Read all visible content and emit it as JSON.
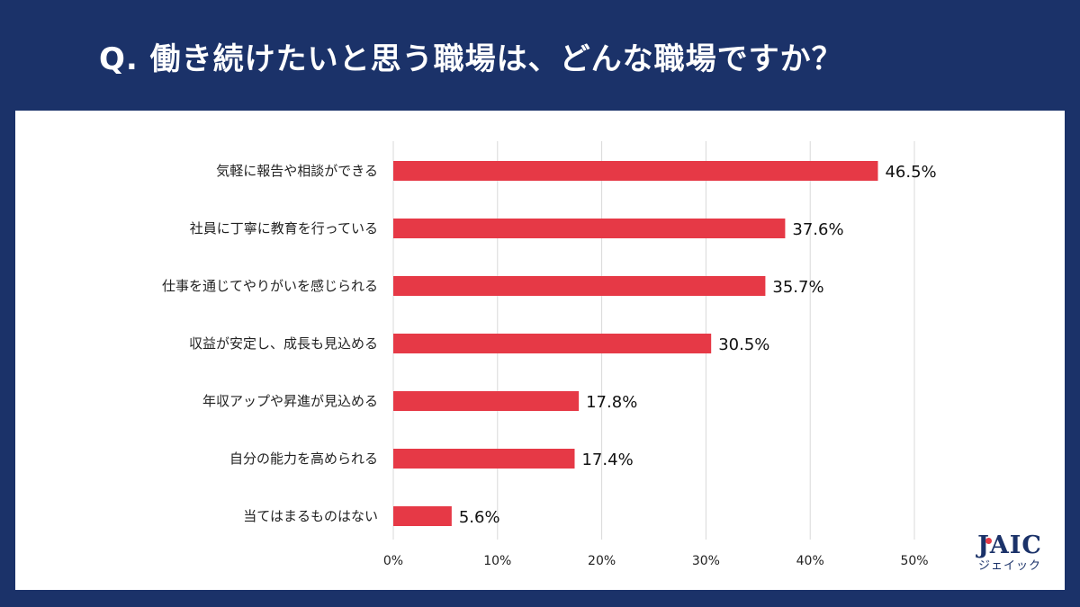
{
  "title": "Q. 働き続けたいと思う職場は、どんな職場ですか？",
  "chart_data": {
    "type": "bar",
    "orientation": "horizontal",
    "categories": [
      "気軽に報告や相談ができる",
      "社員に丁寧に教育を行っている",
      "仕事を通じてやりがいを感じられる",
      "収益が安定し、成長も見込める",
      "年収アップや昇進が見込める",
      "自分の能力を高められる",
      "当てはまるものはない"
    ],
    "values": [
      46.5,
      37.6,
      35.7,
      30.5,
      17.8,
      17.4,
      5.6
    ],
    "value_labels": [
      "46.5%",
      "37.6%",
      "35.7%",
      "30.5%",
      "17.8%",
      "17.4%",
      "5.6%"
    ],
    "xlim": [
      0,
      50
    ],
    "xticks": [
      0,
      10,
      20,
      30,
      40,
      50
    ],
    "xtick_labels": [
      "0%",
      "10%",
      "20%",
      "30%",
      "40%",
      "50%"
    ],
    "grid": true,
    "xlabel": "",
    "ylabel": "",
    "bar_color": "#e63946",
    "grid_color": "#d9d9d9"
  },
  "logo": {
    "main": "JAIC",
    "sub": "ジェイック"
  }
}
